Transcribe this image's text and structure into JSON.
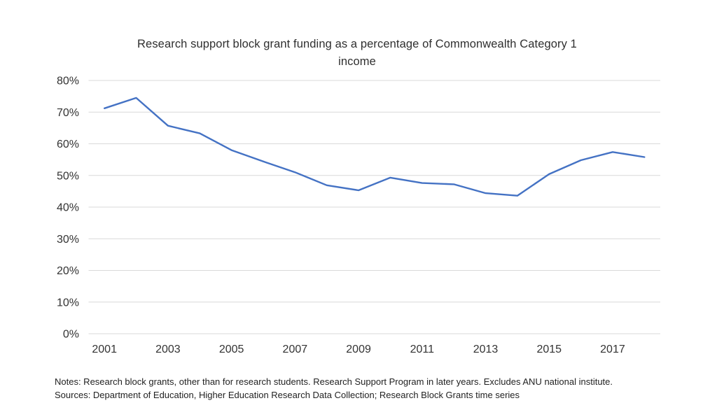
{
  "header": {
    "title_line1": "Research support block grant funding as a percentage of Commonwealth Category 1",
    "title_line2": "income"
  },
  "chart_data": {
    "type": "line",
    "title": "Research support block grant funding as a percentage of Commonwealth Category 1 income",
    "x": [
      2001,
      2002,
      2003,
      2004,
      2005,
      2006,
      2007,
      2008,
      2009,
      2010,
      2011,
      2012,
      2013,
      2014,
      2015,
      2016,
      2017,
      2018
    ],
    "values": [
      71.2,
      74.5,
      65.7,
      63.3,
      58.0,
      54.4,
      51.0,
      46.9,
      45.3,
      49.3,
      47.6,
      47.2,
      44.4,
      43.6,
      50.4,
      54.8,
      57.4,
      55.8
    ],
    "unit": "%",
    "ylim": [
      0,
      80
    ],
    "ytick_labels": [
      "0%",
      "10%",
      "20%",
      "30%",
      "40%",
      "50%",
      "60%",
      "70%",
      "80%"
    ],
    "xtick_labels": [
      "2001",
      "2003",
      "2005",
      "2007",
      "2009",
      "2011",
      "2013",
      "2015",
      "2017"
    ],
    "grid": "horizontal",
    "legend": "none",
    "xlabel": "",
    "ylabel": "",
    "line_color": "#4472C4",
    "gridline_color": "#D9D9D9",
    "text_color": "#333333"
  },
  "footer": {
    "notes": "Notes: Research block grants, other than for research students. Research Support Program in later years. Excludes ANU national institute.",
    "sources": "Sources: Department of Education, Higher Education Research Data Collection; Research Block Grants time series"
  }
}
